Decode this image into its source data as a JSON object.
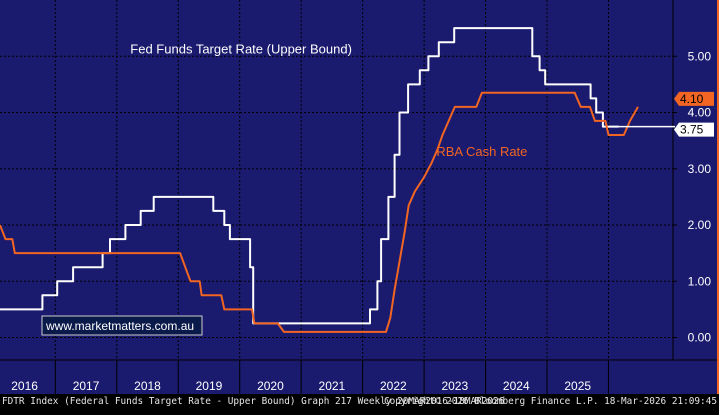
{
  "chart_data": {
    "type": "line",
    "title": "",
    "xlabel": "",
    "ylabel": "",
    "x_range": [
      2015.6,
      2026.55
    ],
    "ylim": [
      -0.4,
      6.0
    ],
    "yticks": [
      0.0,
      1.0,
      2.0,
      3.0,
      4.0,
      5.0
    ],
    "ytick_labels": [
      "0.00",
      "1.00",
      "2.00",
      "3.00",
      "4.00",
      "5.00"
    ],
    "year_labels": [
      "2016",
      "2017",
      "2018",
      "2019",
      "2020",
      "2021",
      "2022",
      "2023",
      "2024",
      "2025"
    ],
    "year_label_positions": [
      2016.0,
      2017.0,
      2018.0,
      2019.0,
      2020.0,
      2021.0,
      2022.0,
      2023.0,
      2024.0,
      2025.0
    ],
    "year_boundaries": [
      2016.5,
      2017.5,
      2018.5,
      2019.5,
      2020.5,
      2021.5,
      2022.5,
      2023.5,
      2024.5,
      2025.5
    ],
    "grid": true,
    "series": [
      {
        "name": "Fed Funds Target Rate (Upper Bound)",
        "color": "#ffffff",
        "last_value": "3.75",
        "step": true,
        "points": [
          [
            2015.6,
            0.5
          ],
          [
            2016.29,
            0.5
          ],
          [
            2016.29,
            0.75
          ],
          [
            2016.53,
            0.75
          ],
          [
            2016.53,
            1.0
          ],
          [
            2016.79,
            1.0
          ],
          [
            2016.79,
            1.25
          ],
          [
            2017.27,
            1.25
          ],
          [
            2017.27,
            1.5
          ],
          [
            2017.39,
            1.5
          ],
          [
            2017.39,
            1.75
          ],
          [
            2017.64,
            1.75
          ],
          [
            2017.64,
            2.0
          ],
          [
            2017.89,
            2.0
          ],
          [
            2017.89,
            2.25
          ],
          [
            2018.1,
            2.25
          ],
          [
            2018.1,
            2.5
          ],
          [
            2019.07,
            2.5
          ],
          [
            2019.07,
            2.25
          ],
          [
            2019.25,
            2.25
          ],
          [
            2019.25,
            2.0
          ],
          [
            2019.34,
            2.0
          ],
          [
            2019.34,
            1.75
          ],
          [
            2019.67,
            1.75
          ],
          [
            2019.67,
            1.25
          ],
          [
            2019.72,
            1.25
          ],
          [
            2019.72,
            0.25
          ],
          [
            2021.62,
            0.25
          ],
          [
            2021.62,
            0.5
          ],
          [
            2021.74,
            0.5
          ],
          [
            2021.74,
            1.0
          ],
          [
            2021.8,
            1.0
          ],
          [
            2021.8,
            1.75
          ],
          [
            2021.92,
            1.75
          ],
          [
            2021.92,
            2.5
          ],
          [
            2022.02,
            2.5
          ],
          [
            2022.02,
            3.25
          ],
          [
            2022.1,
            3.25
          ],
          [
            2022.1,
            4.0
          ],
          [
            2022.24,
            4.0
          ],
          [
            2022.24,
            4.5
          ],
          [
            2022.43,
            4.5
          ],
          [
            2022.43,
            4.75
          ],
          [
            2022.57,
            4.75
          ],
          [
            2022.57,
            5.0
          ],
          [
            2022.74,
            5.0
          ],
          [
            2022.74,
            5.25
          ],
          [
            2022.99,
            5.25
          ],
          [
            2022.99,
            5.5
          ],
          [
            2024.26,
            5.5
          ],
          [
            2024.26,
            5.0
          ],
          [
            2024.38,
            5.0
          ],
          [
            2024.38,
            4.75
          ],
          [
            2024.47,
            4.75
          ],
          [
            2024.47,
            4.5
          ],
          [
            2025.21,
            4.5
          ],
          [
            2025.21,
            4.25
          ],
          [
            2025.3,
            4.25
          ],
          [
            2025.3,
            4.0
          ],
          [
            2025.41,
            4.0
          ],
          [
            2025.41,
            3.75
          ],
          [
            2025.67,
            3.75
          ]
        ]
      },
      {
        "name": "RBA Cash Rate",
        "color": "#f26522",
        "last_value": "4.10",
        "step": false,
        "points": [
          [
            2015.6,
            2.0
          ],
          [
            2015.69,
            1.75
          ],
          [
            2015.8,
            1.75
          ],
          [
            2015.84,
            1.5
          ],
          [
            2018.53,
            1.5
          ],
          [
            2018.7,
            1.0
          ],
          [
            2018.85,
            1.0
          ],
          [
            2018.88,
            0.75
          ],
          [
            2019.2,
            0.75
          ],
          [
            2019.25,
            0.5
          ],
          [
            2019.7,
            0.5
          ],
          [
            2019.74,
            0.25
          ],
          [
            2020.12,
            0.25
          ],
          [
            2020.22,
            0.1
          ],
          [
            2021.88,
            0.1
          ],
          [
            2021.95,
            0.35
          ],
          [
            2022.02,
            0.85
          ],
          [
            2022.1,
            1.35
          ],
          [
            2022.18,
            1.85
          ],
          [
            2022.25,
            2.35
          ],
          [
            2022.35,
            2.6
          ],
          [
            2022.5,
            2.85
          ],
          [
            2022.62,
            3.1
          ],
          [
            2022.72,
            3.35
          ],
          [
            2022.8,
            3.6
          ],
          [
            2022.9,
            3.85
          ],
          [
            2023.0,
            4.1
          ],
          [
            2023.35,
            4.1
          ],
          [
            2023.44,
            4.35
          ],
          [
            2024.95,
            4.35
          ],
          [
            2025.05,
            4.1
          ],
          [
            2025.2,
            4.1
          ],
          [
            2025.28,
            3.85
          ],
          [
            2025.45,
            3.85
          ],
          [
            2025.5,
            3.6
          ],
          [
            2025.75,
            3.6
          ],
          [
            2025.85,
            3.85
          ],
          [
            2025.98,
            4.1
          ]
        ]
      }
    ],
    "annotations": [
      {
        "text": "Fed Funds Target Rate (Upper Bound)",
        "x": 2017.72,
        "y": 5.05,
        "color": "#ffffff"
      },
      {
        "text": "RBA Cash Rate",
        "x": 2022.7,
        "y": 3.23,
        "color": "#f26522"
      }
    ],
    "watermark": "www.marketmatters.com.au"
  },
  "footer": {
    "left": "FDTR Index (Federal Funds Target Rate - Upper Bound) Graph 217 Weekly 20MAR2016-18MAR2026",
    "right": "Copyright© 2026 Bloomberg Finance L.P.   18-Mar-2026 21:09:45"
  },
  "colors": {
    "background": "#1a1a6e",
    "grid": "#000000",
    "axis_bg": "#000000",
    "axis_text": "#ffffff",
    "accent_orange": "#f26522",
    "watermark_bg": "#0a1a4a",
    "watermark_text": "#ffffff",
    "watermark_border": "#cfcfcf"
  }
}
